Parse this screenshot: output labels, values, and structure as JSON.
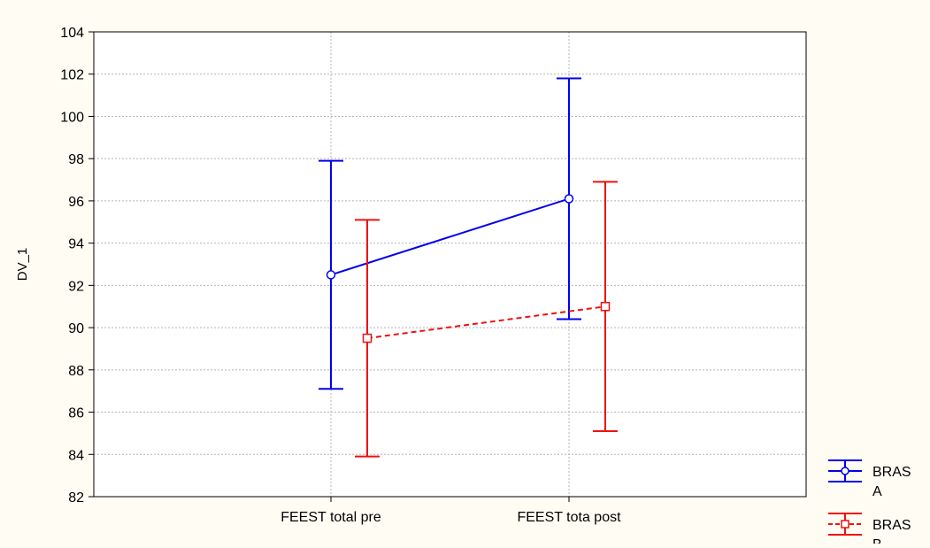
{
  "chart_data": {
    "type": "line",
    "title": "",
    "xlabel": "",
    "ylabel": "DV_1",
    "categories": [
      "FEEST total pre",
      "FEEST tota post"
    ],
    "ylim": [
      82,
      104
    ],
    "yticks": [
      82,
      84,
      86,
      88,
      90,
      92,
      94,
      96,
      98,
      100,
      102,
      104
    ],
    "grid": true,
    "legend_position": "bottom-right",
    "error_bars": true,
    "series": [
      {
        "name": "BRAS A",
        "legend_lines": [
          "BRAS",
          "A"
        ],
        "color": "#0000ee",
        "marker": "circle",
        "line_style": "solid",
        "values": [
          92.5,
          96.1
        ],
        "lower": [
          87.1,
          90.4
        ],
        "upper": [
          97.9,
          101.8
        ]
      },
      {
        "name": "BRAS B",
        "legend_lines": [
          "BRAS",
          "B"
        ],
        "color": "#ee1111",
        "marker": "square",
        "line_style": "dashed",
        "values": [
          89.5,
          91.0
        ],
        "lower": [
          83.9,
          85.1
        ],
        "upper": [
          95.1,
          96.9
        ]
      }
    ]
  },
  "colors": {
    "background": "#fefcf3",
    "plot_background": "#ffffff",
    "grid": "#b4b4b4",
    "axis": "#000000"
  }
}
